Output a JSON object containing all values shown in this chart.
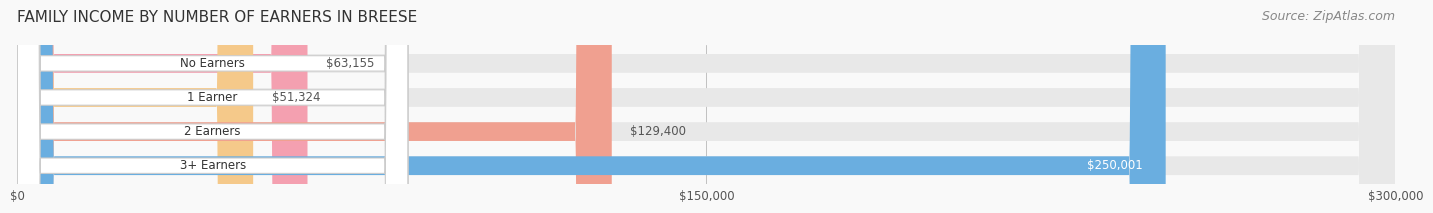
{
  "title": "FAMILY INCOME BY NUMBER OF EARNERS IN BREESE",
  "source": "Source: ZipAtlas.com",
  "categories": [
    "No Earners",
    "1 Earner",
    "2 Earners",
    "3+ Earners"
  ],
  "values": [
    63155,
    51324,
    129400,
    250001
  ],
  "bar_colors": [
    "#f4a0b0",
    "#f5c98a",
    "#f0a090",
    "#6aaee0"
  ],
  "bar_bg_color": "#eeeeee",
  "label_values": [
    "$63,155",
    "$51,324",
    "$129,400",
    "$250,001"
  ],
  "xlim": [
    0,
    300000
  ],
  "xticks": [
    0,
    150000,
    300000
  ],
  "xticklabels": [
    "$0",
    "$150,000",
    "$300,000"
  ],
  "title_fontsize": 11,
  "source_fontsize": 9,
  "bar_height": 0.55,
  "background_color": "#f9f9f9",
  "bar_bg_alpha": 0.5
}
